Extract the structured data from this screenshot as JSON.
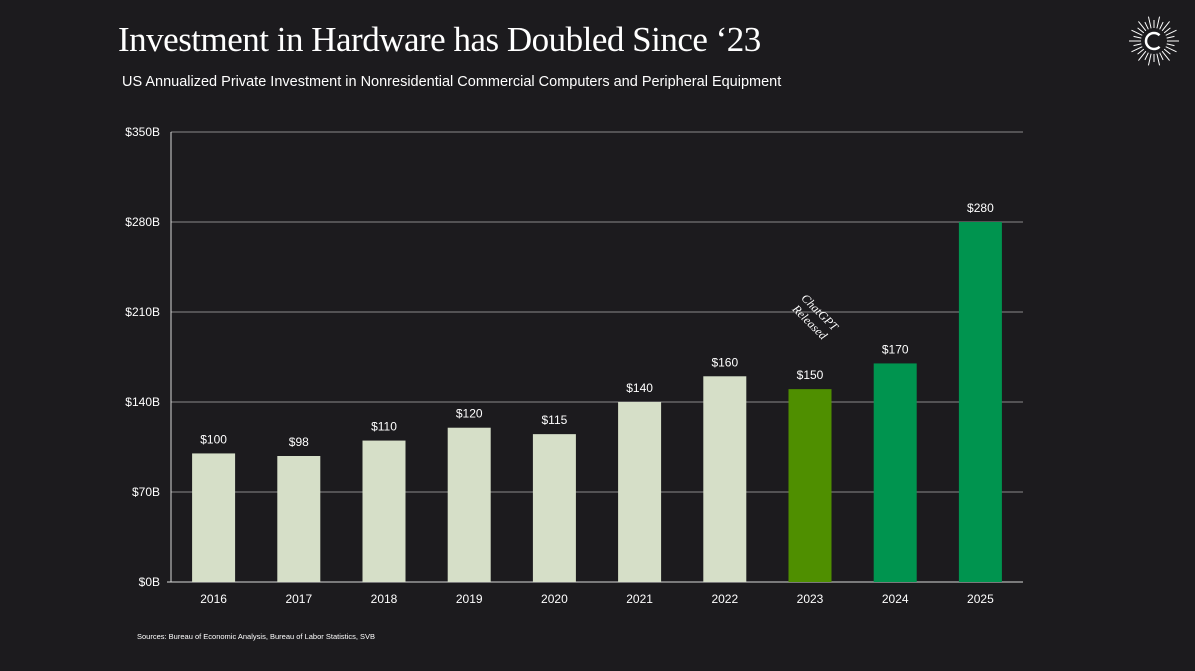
{
  "title": "Investment in Hardware has Doubled Since ‘23",
  "subtitle": "US Annualized Private Investment in Nonresidential Commercial Computers and Peripheral Equipment",
  "source": "Sources: Bureau of Economic Analysis, Bureau of Labor Statistics, SVB",
  "logo_icon": "sunburst-c-logo-icon",
  "colors": {
    "background": "#1c1b1e",
    "bar_default": "#d6dfc8",
    "bar_2023": "#4f8f00",
    "bar_highlight": "#00944f",
    "text": "#ffffff",
    "grid": "#8a8a8a"
  },
  "chart_data": {
    "type": "bar",
    "title": "Investment in Hardware has Doubled Since ‘23",
    "subtitle": "US Annualized Private Investment in Nonresidential Commercial Computers and Peripheral Equipment",
    "xlabel": "",
    "ylabel": "",
    "categories": [
      "2016",
      "2017",
      "2018",
      "2019",
      "2020",
      "2021",
      "2022",
      "2023",
      "2024",
      "2025"
    ],
    "values": [
      100,
      98,
      110,
      120,
      115,
      140,
      160,
      150,
      170,
      280
    ],
    "data_labels": [
      "$100",
      "$98",
      "$110",
      "$120",
      "$115",
      "$140",
      "$160",
      "$150",
      "$170",
      "$280"
    ],
    "bar_colors": [
      "#d6dfc8",
      "#d6dfc8",
      "#d6dfc8",
      "#d6dfc8",
      "#d6dfc8",
      "#d6dfc8",
      "#d6dfc8",
      "#4f8f00",
      "#00944f",
      "#00944f"
    ],
    "ylim": [
      0,
      350
    ],
    "yticks": [
      0,
      70,
      140,
      210,
      280,
      350
    ],
    "ytick_labels": [
      "$0B",
      "$70B",
      "$140B",
      "$210B",
      "$280B",
      "$350B"
    ],
    "grid": true,
    "legend": "none",
    "annotations": [
      {
        "text_lines": [
          "ChatGPT",
          "Released"
        ],
        "category": "2023"
      }
    ]
  }
}
